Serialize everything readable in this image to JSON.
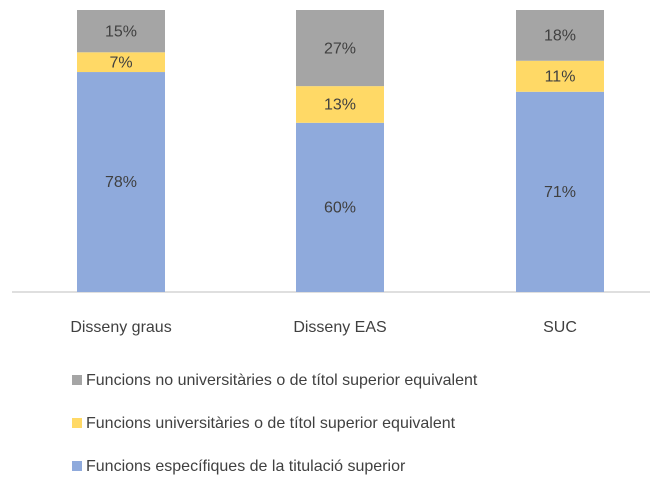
{
  "chart_data": {
    "type": "stacked_bar",
    "categories": [
      "Disseny graus",
      "Disseny EAS",
      "SUC"
    ],
    "series": [
      {
        "name": "Funcions específiques de la titulació superior",
        "color": "#8faadc",
        "values": [
          78,
          60,
          71
        ],
        "value_labels": [
          "78%",
          "60%",
          "71%"
        ]
      },
      {
        "name": "Funcions universitàries o de títol superior equivalent",
        "color": "#ffd966",
        "values": [
          7,
          13,
          11
        ],
        "value_labels": [
          "7%",
          "13%",
          "11%"
        ]
      },
      {
        "name": "Funcions no universitàries o de títol superior equivalent",
        "color": "#a5a5a5",
        "values": [
          15,
          27,
          18
        ],
        "value_labels": [
          "15%",
          "27%",
          "18%"
        ]
      }
    ],
    "legend": "bottom"
  }
}
